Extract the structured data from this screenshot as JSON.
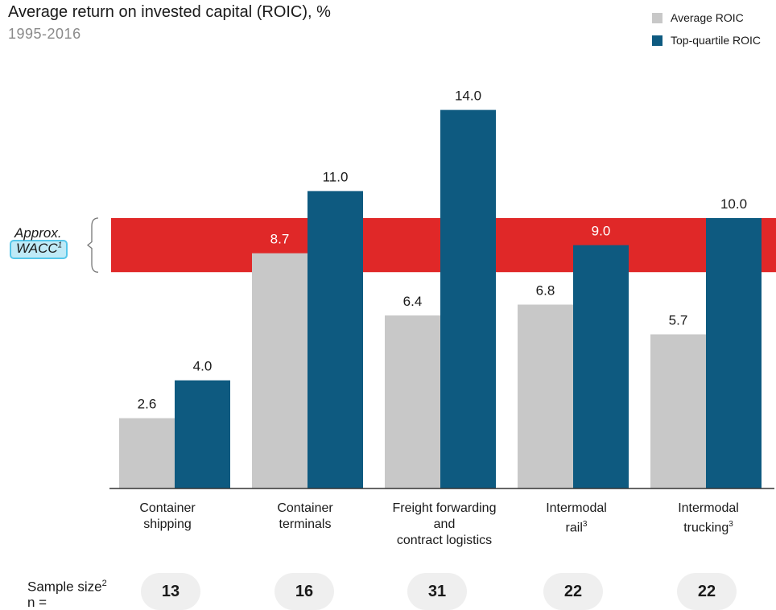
{
  "header": {
    "title": "Average return on invested capital (ROIC), %",
    "subtitle": "1995-2016"
  },
  "legend": {
    "items": [
      {
        "label": "Average ROIC",
        "color": "#c8c8c8"
      },
      {
        "label": "Top-quartile ROIC",
        "color": "#0e5a80"
      }
    ]
  },
  "wacc": {
    "line1": "Approx.",
    "line2": "WACC",
    "sup": "1",
    "band_low": 8.0,
    "band_high": 10.0,
    "band_color": "#e02828"
  },
  "chart_data": {
    "type": "bar",
    "title": "Average return on invested capital (ROIC), %",
    "subtitle": "1995-2016",
    "categories": [
      {
        "lines": [
          "Container",
          "shipping"
        ],
        "sup": ""
      },
      {
        "lines": [
          "Container",
          "terminals"
        ],
        "sup": ""
      },
      {
        "lines": [
          "Freight forwarding",
          "and",
          "contract logistics"
        ],
        "sup": ""
      },
      {
        "lines": [
          "Intermodal",
          "rail"
        ],
        "sup": "3"
      },
      {
        "lines": [
          "Intermodal",
          "trucking"
        ],
        "sup": "3"
      }
    ],
    "series": [
      {
        "name": "Average ROIC",
        "color": "#c8c8c8",
        "values": [
          2.6,
          8.7,
          6.4,
          6.8,
          5.7
        ],
        "labels": [
          "2.6",
          "8.7",
          "6.4",
          "6.8",
          "5.7"
        ]
      },
      {
        "name": "Top-quartile ROIC",
        "color": "#0e5a80",
        "values": [
          4.0,
          11.0,
          14.0,
          9.0,
          10.0
        ],
        "labels": [
          "4.0",
          "11.0",
          "14.0",
          "9.0",
          "10.0"
        ]
      }
    ],
    "ylim": [
      0,
      14
    ],
    "grid": false,
    "legend_position": "top-right"
  },
  "sample": {
    "label": "Sample size",
    "sup": "2",
    "line2": "n =",
    "values": [
      "13",
      "16",
      "31",
      "22",
      "22"
    ]
  }
}
